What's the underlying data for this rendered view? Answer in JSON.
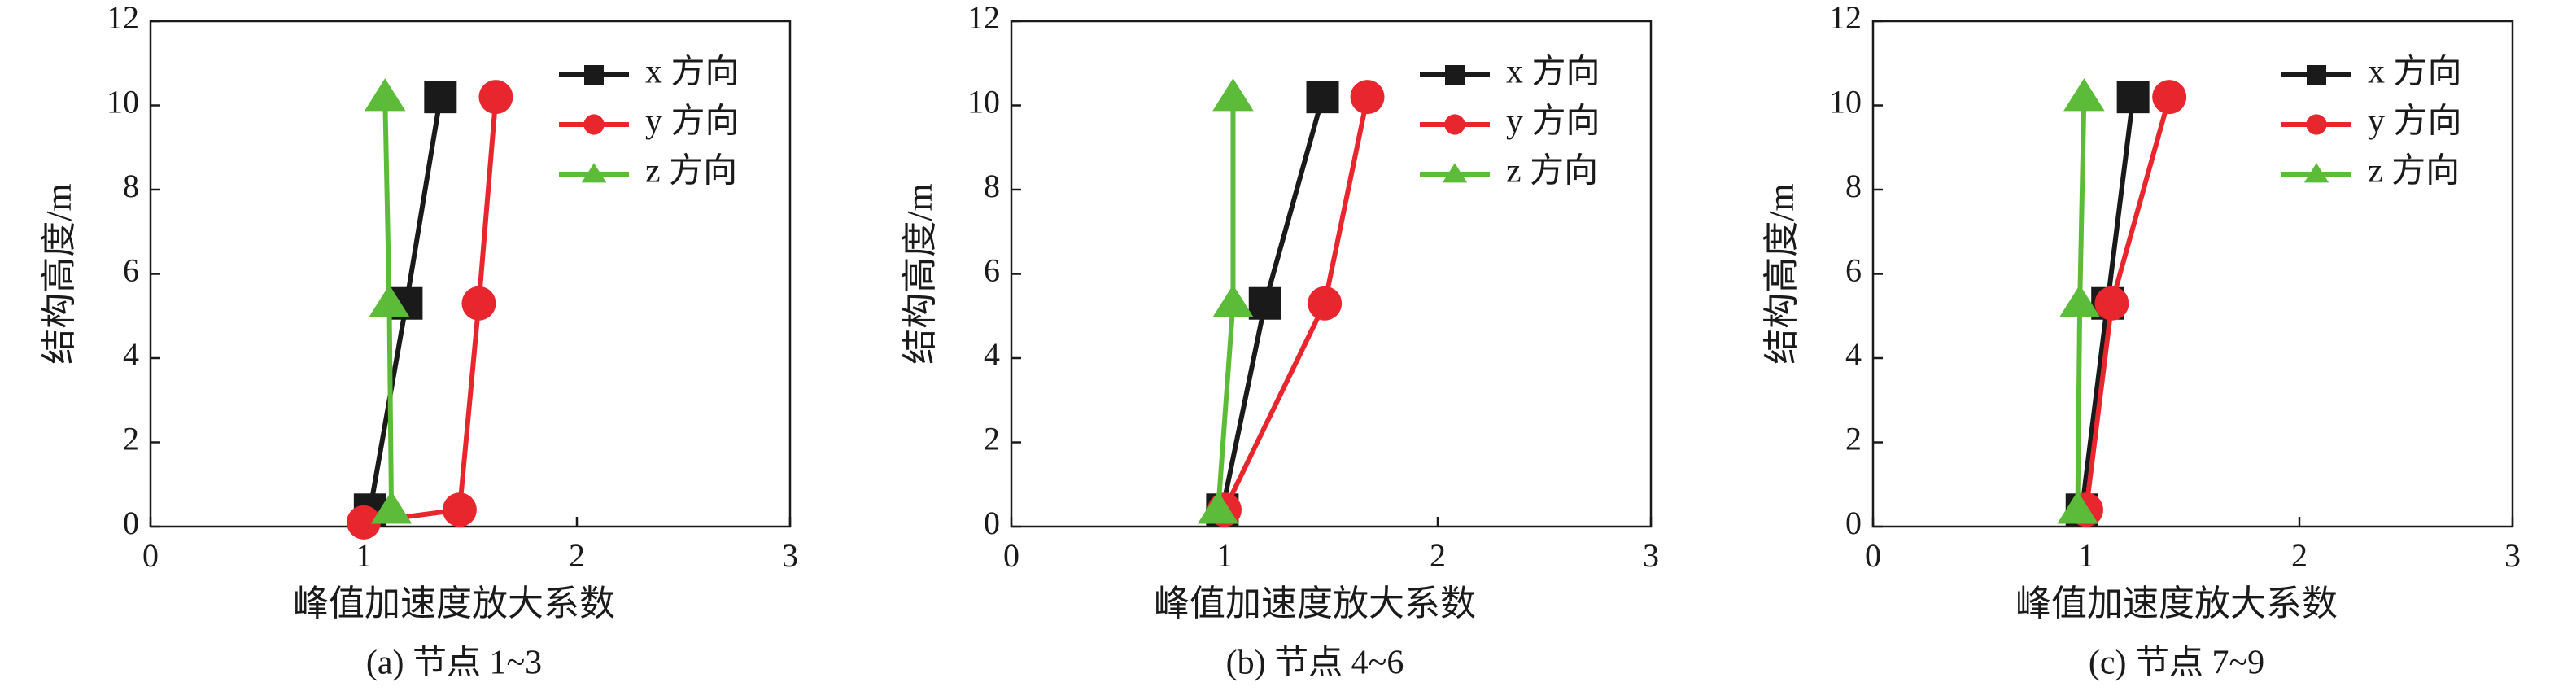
{
  "chart_data": [
    {
      "type": "line",
      "xlabel": "峰值加速度放大系数",
      "ylabel": "结构高度/m",
      "caption": "(a) 节点 1~3",
      "xlim": [
        0,
        3
      ],
      "xticks": [
        0,
        1,
        2,
        3
      ],
      "ylim": [
        0,
        12
      ],
      "yticks": [
        0,
        2,
        4,
        6,
        8,
        10,
        12
      ],
      "legend": "upper right",
      "series": [
        {
          "name": "x 方向",
          "color": "#1a1a1a",
          "marker": "square",
          "x": [
            1.03,
            1.2,
            1.36
          ],
          "values": [
            0.4,
            5.3,
            10.2
          ]
        },
        {
          "name": "y 方向",
          "color": "#e8262d",
          "marker": "circle",
          "x": [
            1.0,
            1.45,
            1.54,
            1.62
          ],
          "values": [
            0.1,
            0.4,
            5.3,
            10.2
          ]
        },
        {
          "name": "z 方向",
          "color": "#5dbb3a",
          "marker": "triangle",
          "x": [
            1.13,
            1.12,
            1.1
          ],
          "values": [
            0.4,
            5.3,
            10.2
          ]
        }
      ]
    },
    {
      "type": "line",
      "xlabel": "峰值加速度放大系数",
      "ylabel": "结构高度/m",
      "caption": "(b) 节点 4~6",
      "xlim": [
        0,
        3
      ],
      "xticks": [
        0,
        1,
        2,
        3
      ],
      "ylim": [
        0,
        12
      ],
      "yticks": [
        0,
        2,
        4,
        6,
        8,
        10,
        12
      ],
      "legend": "upper right",
      "series": [
        {
          "name": "x 方向",
          "color": "#1a1a1a",
          "marker": "square",
          "x": [
            0.99,
            1.19,
            1.46
          ],
          "values": [
            0.4,
            5.3,
            10.2
          ]
        },
        {
          "name": "y 方向",
          "color": "#e8262d",
          "marker": "circle",
          "x": [
            1.0,
            1.47,
            1.67
          ],
          "values": [
            0.4,
            5.3,
            10.2
          ]
        },
        {
          "name": "z 方向",
          "color": "#5dbb3a",
          "marker": "triangle",
          "x": [
            0.97,
            1.04,
            1.04
          ],
          "values": [
            0.4,
            5.3,
            10.2
          ]
        }
      ]
    },
    {
      "type": "line",
      "xlabel": "峰值加速度放大系数",
      "ylabel": "结构高度/m",
      "caption": "(c) 节点 7~9",
      "xlim": [
        0,
        3
      ],
      "xticks": [
        0,
        1,
        2,
        3
      ],
      "ylim": [
        0,
        12
      ],
      "yticks": [
        0,
        2,
        4,
        6,
        8,
        10,
        12
      ],
      "legend": "upper right",
      "series": [
        {
          "name": "x 方向",
          "color": "#1a1a1a",
          "marker": "square",
          "x": [
            0.98,
            1.1,
            1.22
          ],
          "values": [
            0.4,
            5.3,
            10.2
          ]
        },
        {
          "name": "y 方向",
          "color": "#e8262d",
          "marker": "circle",
          "x": [
            1.0,
            1.12,
            1.39
          ],
          "values": [
            0.4,
            5.3,
            10.2
          ]
        },
        {
          "name": "z 方向",
          "color": "#5dbb3a",
          "marker": "triangle",
          "x": [
            0.96,
            0.97,
            0.99
          ],
          "values": [
            0.4,
            5.3,
            10.2
          ]
        }
      ]
    }
  ]
}
